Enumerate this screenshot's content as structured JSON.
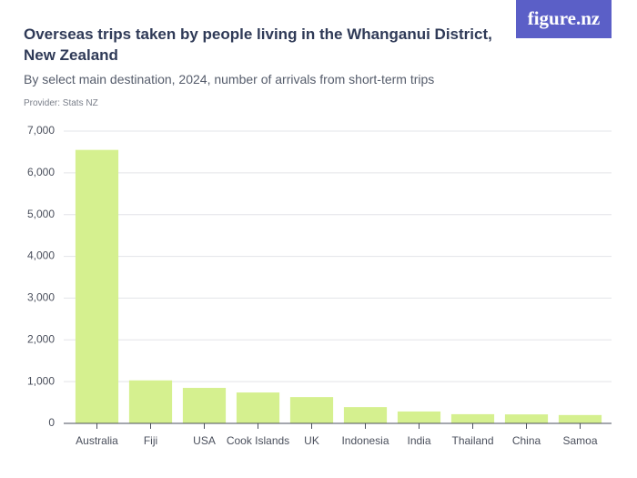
{
  "chart_data": {
    "type": "bar",
    "title": "Overseas trips taken by people living in the Whanganui District, New Zealand",
    "subtitle": "By select main destination, 2024, number of arrivals from short-term trips",
    "provider": "Provider: Stats NZ",
    "logo": "figure.nz",
    "categories": [
      "Australia",
      "Fiji",
      "USA",
      "Cook Islands",
      "UK",
      "Indonesia",
      "India",
      "Thailand",
      "China",
      "Samoa"
    ],
    "values": [
      6550,
      1030,
      850,
      740,
      630,
      390,
      285,
      220,
      215,
      200
    ],
    "color": "#d5f08f",
    "ylim": [
      0,
      7000
    ],
    "yticks": [
      0,
      {
        "value": 1000,
        "label": "1,000"
      },
      {
        "value": 2000,
        "label": "2,000"
      },
      {
        "value": 3000,
        "label": "3,000"
      },
      {
        "value": 4000,
        "label": "4,000"
      },
      {
        "value": 5000,
        "label": "5,000"
      },
      {
        "value": 6000,
        "label": "6,000"
      },
      {
        "value": 7000,
        "label": "7,000"
      }
    ],
    "grid": true
  }
}
